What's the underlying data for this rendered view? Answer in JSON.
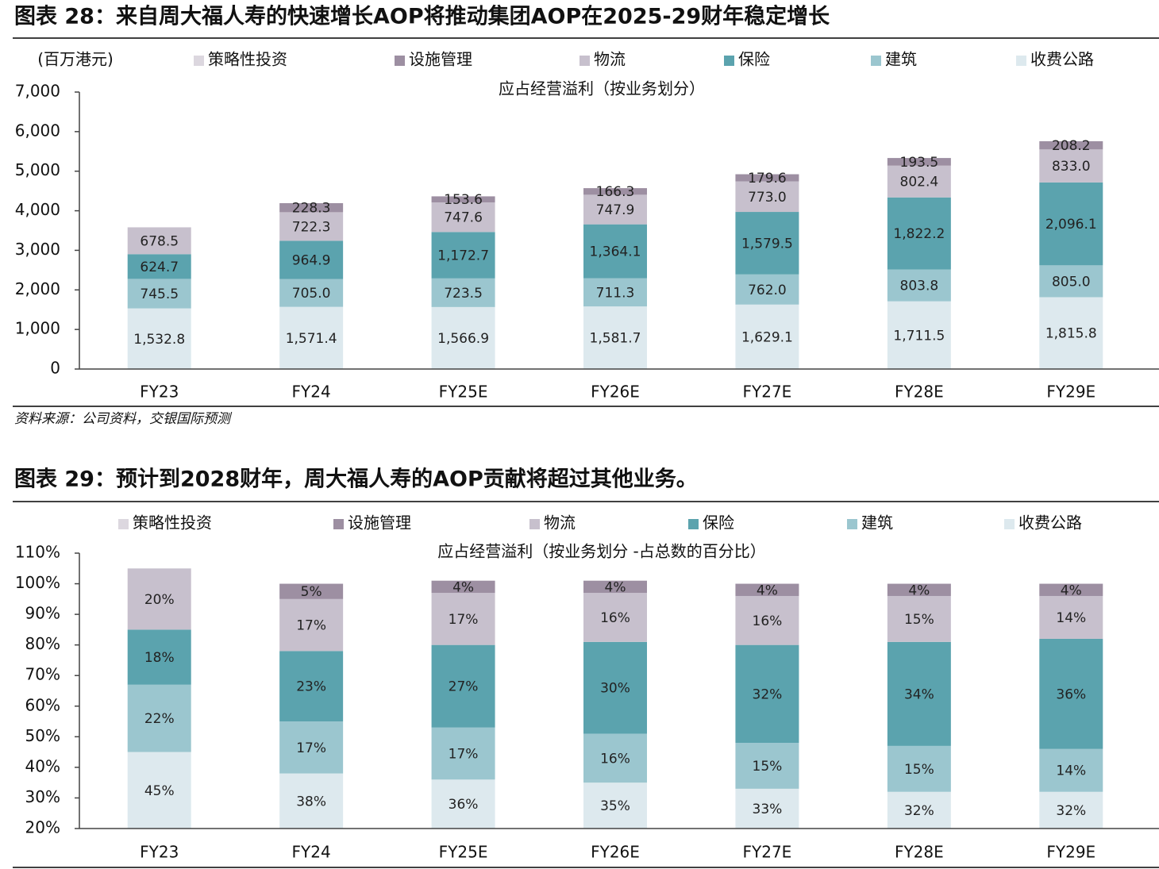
{
  "chart_data": [
    {
      "type": "stacked-bar",
      "title": "图表 28：来自周大福人寿的快速增长AOP将推动集团AOP在2025-29财年稳定增长",
      "subtitle": "应占经营溢利（按业务划分）",
      "y_label": "(百万港元)",
      "source": "资料来源：公司资料，交银国际预测",
      "categories": [
        "FY23",
        "FY24",
        "FY25E",
        "FY26E",
        "FY27E",
        "FY28E",
        "FY29E"
      ],
      "ylim": [
        0,
        7000
      ],
      "yticks": [
        0,
        {
          "value": 1000,
          "label": "1,000"
        },
        {
          "value": 2000,
          "label": "2,000"
        },
        {
          "value": 3000,
          "label": "3,000"
        },
        {
          "value": 4000,
          "label": "4,000"
        },
        {
          "value": 5000,
          "label": "5,000"
        },
        {
          "value": 6000,
          "label": "6,000"
        },
        {
          "value": 7000,
          "label": "7,000"
        }
      ],
      "legend": "top",
      "series": [
        {
          "name": "收费公路",
          "color": "#dde9ee",
          "values": [
            1532.8,
            1571.4,
            1566.9,
            1581.7,
            1629.1,
            1711.5,
            1815.8
          ],
          "value_labels": [
            "1,532.8",
            "1,571.4",
            "1,566.9",
            "1,581.7",
            "1,629.1",
            "1,711.5",
            "1,815.8"
          ]
        },
        {
          "name": "建筑",
          "color": "#9bc6cf",
          "values": [
            745.5,
            705.0,
            723.5,
            711.3,
            762.0,
            803.8,
            805.0
          ],
          "value_labels": [
            "745.5",
            "705.0",
            "723.5",
            "711.3",
            "762.0",
            "803.8",
            "805.0"
          ]
        },
        {
          "name": "保险",
          "color": "#5ba3ae",
          "values": [
            624.7,
            964.9,
            1172.7,
            1364.1,
            1579.5,
            1822.2,
            2096.1
          ],
          "value_labels": [
            "624.7",
            "964.9",
            "1,172.7",
            "1,364.1",
            "1,579.5",
            "1,822.2",
            "2,096.1"
          ]
        },
        {
          "name": "物流",
          "color": "#c7c0cd",
          "values": [
            678.5,
            722.3,
            747.6,
            747.9,
            773.0,
            802.4,
            833.0
          ],
          "value_labels": [
            "678.5",
            "722.3",
            "747.6",
            "747.9",
            "773.0",
            "802.4",
            "833.0"
          ]
        },
        {
          "name": "设施管理",
          "color": "#9d8fa2",
          "values": [
            null,
            228.3,
            153.6,
            166.3,
            179.6,
            193.5,
            208.2
          ],
          "value_labels": [
            null,
            "228.3",
            "153.6",
            "166.3",
            "179.6",
            "193.5",
            "208.2"
          ]
        },
        {
          "name": "策略性投资",
          "color": "#dcd7df",
          "values": [
            null,
            null,
            null,
            null,
            null,
            null,
            null
          ]
        }
      ]
    },
    {
      "type": "stacked-bar",
      "title": "图表 29：预计到2028财年，周大福人寿的AOP贡献将超过其他业务。",
      "subtitle": "应占经营溢利（按业务划分 -占总数的百分比）",
      "categories": [
        "FY23",
        "FY24",
        "FY25E",
        "FY26E",
        "FY27E",
        "FY28E",
        "FY29E"
      ],
      "ylim": [
        20,
        110
      ],
      "yticks": [
        {
          "value": 20,
          "label": "20%"
        },
        {
          "value": 30,
          "label": "30%"
        },
        {
          "value": 40,
          "label": "40%"
        },
        {
          "value": 50,
          "label": "50%"
        },
        {
          "value": 60,
          "label": "60%"
        },
        {
          "value": 70,
          "label": "70%"
        },
        {
          "value": 80,
          "label": "80%"
        },
        {
          "value": 90,
          "label": "90%"
        },
        {
          "value": 100,
          "label": "100%"
        },
        {
          "value": 110,
          "label": "110%"
        }
      ],
      "legend": "top",
      "series": [
        {
          "name": "收费公路",
          "color": "#dde9ee",
          "values": [
            45,
            38,
            36,
            35,
            33,
            32,
            32
          ],
          "value_labels": [
            "45%",
            "38%",
            "36%",
            "35%",
            "33%",
            "32%",
            "32%"
          ]
        },
        {
          "name": "建筑",
          "color": "#9bc6cf",
          "values": [
            22,
            17,
            17,
            16,
            15,
            15,
            14
          ],
          "value_labels": [
            "22%",
            "17%",
            "17%",
            "16%",
            "15%",
            "15%",
            "14%"
          ]
        },
        {
          "name": "保险",
          "color": "#5ba3ae",
          "values": [
            18,
            23,
            27,
            30,
            32,
            34,
            36
          ],
          "value_labels": [
            "18%",
            "23%",
            "27%",
            "30%",
            "32%",
            "34%",
            "36%"
          ]
        },
        {
          "name": "物流",
          "color": "#c7c0cd",
          "values": [
            20,
            17,
            17,
            16,
            16,
            15,
            14
          ],
          "value_labels": [
            "20%",
            "17%",
            "17%",
            "16%",
            "16%",
            "15%",
            "14%"
          ]
        },
        {
          "name": "设施管理",
          "color": "#9d8fa2",
          "values": [
            null,
            5,
            4,
            4,
            4,
            4,
            4
          ],
          "value_labels": [
            null,
            "5%",
            "4%",
            "4%",
            "4%",
            "4%",
            "4%"
          ]
        },
        {
          "name": "策略性投资",
          "color": "#dcd7df",
          "values": [
            null,
            null,
            null,
            null,
            null,
            null,
            null
          ]
        }
      ]
    }
  ]
}
